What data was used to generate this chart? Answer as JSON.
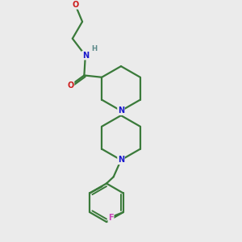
{
  "bg_color": "#ebebeb",
  "bond_color": "#3a7a3a",
  "atom_colors": {
    "N": "#1a1acc",
    "O": "#cc1a1a",
    "F": "#cc44bb",
    "H": "#5a8888",
    "C": "#000000"
  }
}
